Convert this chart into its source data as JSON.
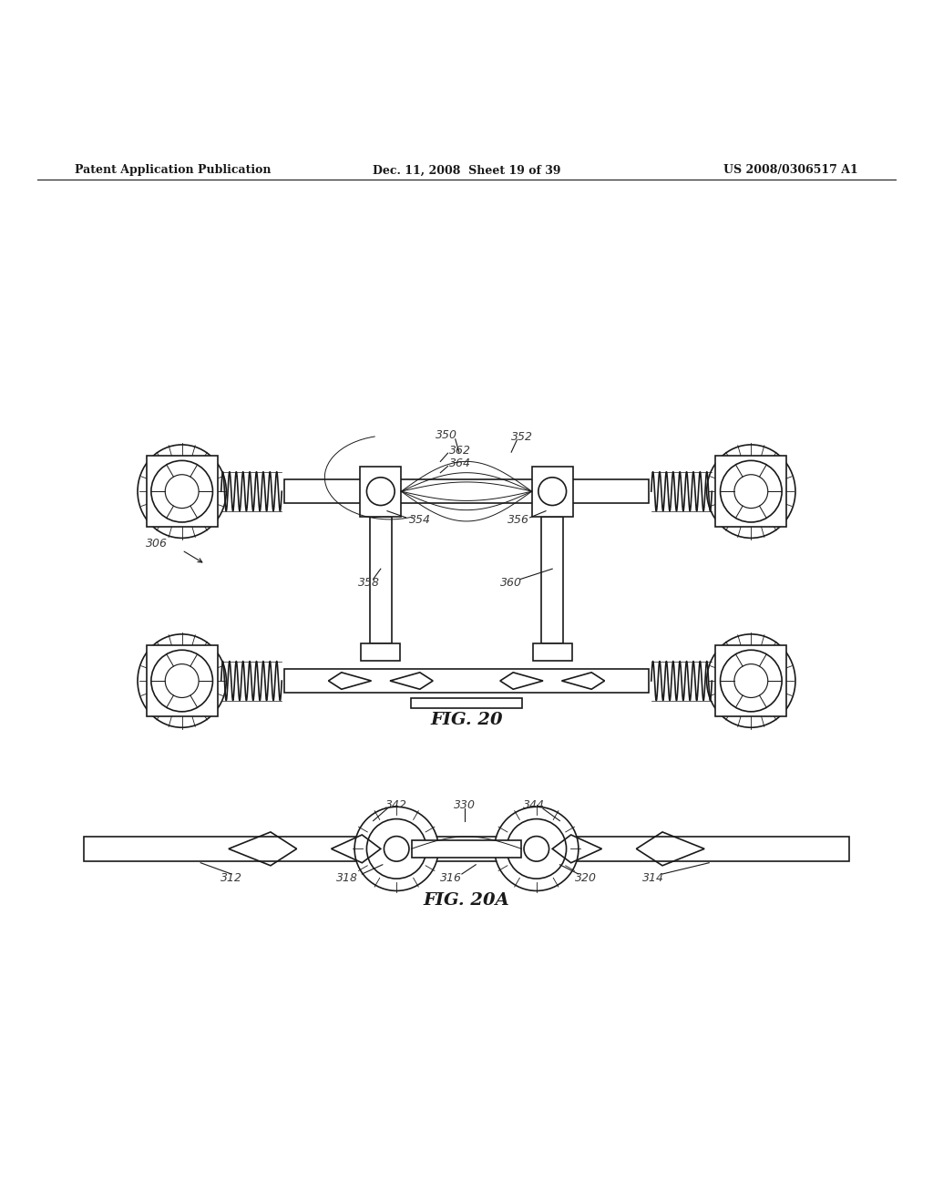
{
  "header_left": "Patent Application Publication",
  "header_mid": "Dec. 11, 2008  Sheet 19 of 39",
  "header_right": "US 2008/0306517 A1",
  "fig20_label": "FIG. 20",
  "fig20a_label": "FIG. 20A",
  "bg_color": "#ffffff",
  "line_color": "#1a1a1a",
  "label_color": "#3a3a3a"
}
